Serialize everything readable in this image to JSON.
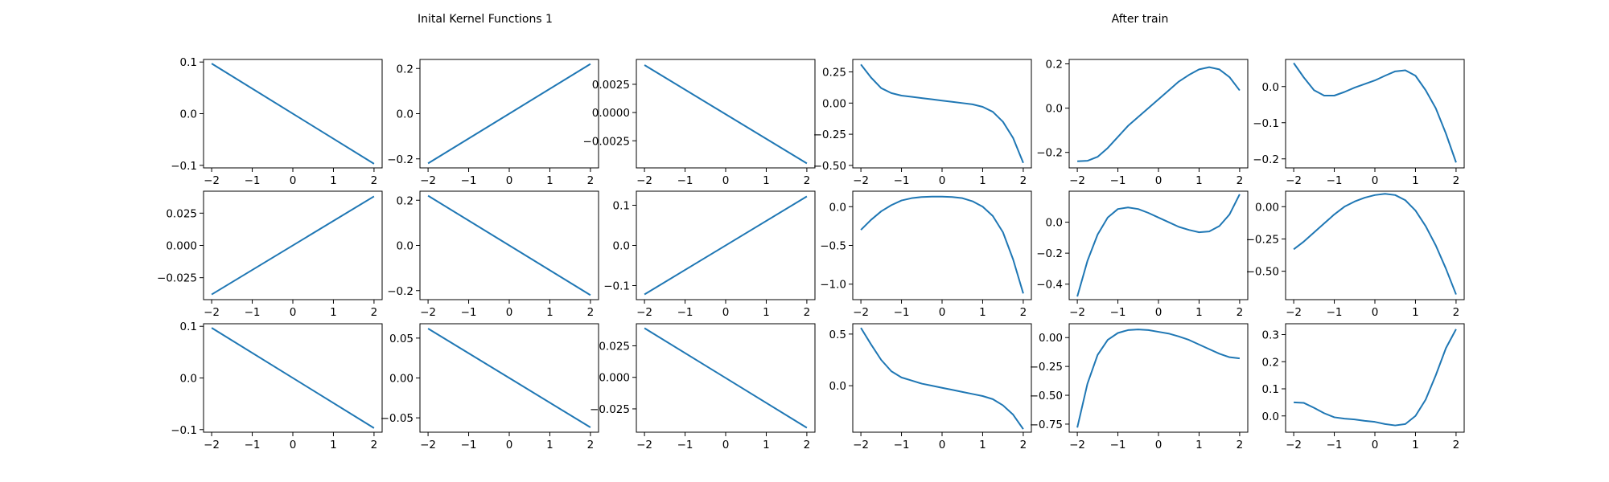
{
  "titles": {
    "left": "Inital Kernel Functions 1",
    "right": "After train"
  },
  "style": {
    "line_color": "#1f77b4",
    "axis_color": "#000000",
    "background": "#ffffff"
  },
  "chart_data": [
    {
      "type": "line",
      "x": [
        -2,
        2
      ],
      "y": [
        0.097,
        -0.097
      ],
      "xlim": [
        -2.2,
        2.2
      ],
      "ylim": [
        -0.105,
        0.105
      ],
      "xticks": [
        -2,
        -1,
        0,
        1,
        2
      ],
      "yticks": [
        0.1,
        0.0,
        -0.1
      ],
      "ytick_labels": [
        "0.1",
        "0.0",
        "−0.1"
      ]
    },
    {
      "type": "line",
      "x": [
        -2,
        2
      ],
      "y": [
        -0.22,
        0.22
      ],
      "xlim": [
        -2.2,
        2.2
      ],
      "ylim": [
        -0.24,
        0.24
      ],
      "xticks": [
        -2,
        -1,
        0,
        1,
        2
      ],
      "yticks": [
        0.2,
        0.0,
        -0.2
      ],
      "ytick_labels": [
        "0.2",
        "0.0",
        "−0.2"
      ]
    },
    {
      "type": "line",
      "x": [
        -2,
        2
      ],
      "y": [
        0.0042,
        -0.0045
      ],
      "xlim": [
        -2.2,
        2.2
      ],
      "ylim": [
        -0.0049,
        0.0047
      ],
      "xticks": [
        -2,
        -1,
        0,
        1,
        2
      ],
      "yticks": [
        0.0025,
        0.0,
        -0.0025
      ],
      "ytick_labels": [
        "0.0025",
        "0.0000",
        "−0.0025"
      ]
    },
    {
      "type": "line",
      "x": [
        -2,
        -1.75,
        -1.5,
        -1.25,
        -1,
        -0.75,
        -0.5,
        -0.25,
        0,
        0.25,
        0.5,
        0.75,
        1,
        1.25,
        1.5,
        1.75,
        2
      ],
      "y": [
        0.31,
        0.205,
        0.12,
        0.08,
        0.06,
        0.05,
        0.04,
        0.03,
        0.02,
        0.01,
        0.0,
        -0.01,
        -0.03,
        -0.07,
        -0.15,
        -0.28,
        -0.48
      ],
      "xlim": [
        -2.2,
        2.2
      ],
      "ylim": [
        -0.52,
        0.35
      ],
      "xticks": [
        -2,
        -1,
        0,
        1,
        2
      ],
      "yticks": [
        0.25,
        0.0,
        -0.25,
        -0.5
      ],
      "ytick_labels": [
        "0.25",
        "0.00",
        "−0.25",
        "−0.50"
      ]
    },
    {
      "type": "line",
      "x": [
        -2,
        -1.75,
        -1.5,
        -1.25,
        -1,
        -0.75,
        -0.5,
        -0.25,
        0,
        0.25,
        0.5,
        0.75,
        1,
        1.25,
        1.5,
        1.75,
        2
      ],
      "y": [
        -0.24,
        -0.238,
        -0.22,
        -0.18,
        -0.13,
        -0.08,
        -0.04,
        0.0,
        0.04,
        0.08,
        0.12,
        0.15,
        0.175,
        0.185,
        0.175,
        0.14,
        0.08
      ],
      "xlim": [
        -2.2,
        2.2
      ],
      "ylim": [
        -0.27,
        0.22
      ],
      "xticks": [
        -2,
        -1,
        0,
        1,
        2
      ],
      "yticks": [
        0.2,
        0.0,
        -0.2
      ],
      "ytick_labels": [
        "0.2",
        "0.0",
        "−0.2"
      ]
    },
    {
      "type": "line",
      "x": [
        -2,
        -1.75,
        -1.5,
        -1.25,
        -1,
        -0.75,
        -0.5,
        -0.25,
        0,
        0.25,
        0.5,
        0.75,
        1,
        1.25,
        1.5,
        1.75,
        2
      ],
      "y": [
        0.065,
        0.025,
        -0.01,
        -0.025,
        -0.025,
        -0.015,
        -0.003,
        0.007,
        0.017,
        0.03,
        0.042,
        0.045,
        0.03,
        -0.01,
        -0.06,
        -0.13,
        -0.21
      ],
      "xlim": [
        -2.2,
        2.2
      ],
      "ylim": [
        -0.225,
        0.075
      ],
      "xticks": [
        -2,
        -1,
        0,
        1,
        2
      ],
      "yticks": [
        0.0,
        -0.1,
        -0.2
      ],
      "ytick_labels": [
        "0.0",
        "−0.1",
        "−0.2"
      ]
    },
    {
      "type": "line",
      "x": [
        -2,
        2
      ],
      "y": [
        -0.038,
        0.038
      ],
      "xlim": [
        -2.2,
        2.2
      ],
      "ylim": [
        -0.042,
        0.042
      ],
      "xticks": [
        -2,
        -1,
        0,
        1,
        2
      ],
      "yticks": [
        0.025,
        0.0,
        -0.025
      ],
      "ytick_labels": [
        "0.025",
        "0.000",
        "−0.025"
      ]
    },
    {
      "type": "line",
      "x": [
        -2,
        2
      ],
      "y": [
        0.22,
        -0.22
      ],
      "xlim": [
        -2.2,
        2.2
      ],
      "ylim": [
        -0.24,
        0.24
      ],
      "xticks": [
        -2,
        -1,
        0,
        1,
        2
      ],
      "yticks": [
        0.2,
        0.0,
        -0.2
      ],
      "ytick_labels": [
        "0.2",
        "0.0",
        "−0.2"
      ]
    },
    {
      "type": "line",
      "x": [
        -2,
        2
      ],
      "y": [
        -0.122,
        0.122
      ],
      "xlim": [
        -2.2,
        2.2
      ],
      "ylim": [
        -0.135,
        0.135
      ],
      "xticks": [
        -2,
        -1,
        0,
        1,
        2
      ],
      "yticks": [
        0.1,
        0.0,
        -0.1
      ],
      "ytick_labels": [
        "0.1",
        "0.0",
        "−0.1"
      ]
    },
    {
      "type": "line",
      "x": [
        -2,
        -1.75,
        -1.5,
        -1.25,
        -1,
        -0.75,
        -0.5,
        -0.25,
        0,
        0.25,
        0.5,
        0.75,
        1,
        1.25,
        1.5,
        1.75,
        2
      ],
      "y": [
        -0.3,
        -0.17,
        -0.06,
        0.02,
        0.08,
        0.11,
        0.125,
        0.13,
        0.13,
        0.125,
        0.11,
        0.07,
        0.0,
        -0.12,
        -0.33,
        -0.68,
        -1.12
      ],
      "xlim": [
        -2.2,
        2.2
      ],
      "ylim": [
        -1.2,
        0.2
      ],
      "xticks": [
        -2,
        -1,
        0,
        1,
        2
      ],
      "yticks": [
        0.0,
        -0.5,
        -1.0
      ],
      "ytick_labels": [
        "0.0",
        "−0.5",
        "−1.0"
      ]
    },
    {
      "type": "line",
      "x": [
        -2,
        -1.75,
        -1.5,
        -1.25,
        -1,
        -0.75,
        -0.5,
        -0.25,
        0,
        0.25,
        0.5,
        0.75,
        1,
        1.25,
        1.5,
        1.75,
        2
      ],
      "y": [
        -0.48,
        -0.25,
        -0.08,
        0.03,
        0.085,
        0.095,
        0.085,
        0.06,
        0.03,
        0.0,
        -0.03,
        -0.05,
        -0.065,
        -0.06,
        -0.025,
        0.05,
        0.18
      ],
      "xlim": [
        -2.2,
        2.2
      ],
      "ylim": [
        -0.5,
        0.2
      ],
      "xticks": [
        -2,
        -1,
        0,
        1,
        2
      ],
      "yticks": [
        0.0,
        -0.2,
        -0.4
      ],
      "ytick_labels": [
        "0.0",
        "−0.2",
        "−0.4"
      ]
    },
    {
      "type": "line",
      "x": [
        -2,
        -1.75,
        -1.5,
        -1.25,
        -1,
        -0.75,
        -0.5,
        -0.25,
        0,
        0.25,
        0.5,
        0.75,
        1,
        1.25,
        1.5,
        1.75,
        2
      ],
      "y": [
        -0.33,
        -0.27,
        -0.2,
        -0.13,
        -0.06,
        0.0,
        0.04,
        0.07,
        0.09,
        0.1,
        0.09,
        0.05,
        -0.03,
        -0.15,
        -0.3,
        -0.48,
        -0.68
      ],
      "xlim": [
        -2.2,
        2.2
      ],
      "ylim": [
        -0.72,
        0.12
      ],
      "xticks": [
        -2,
        -1,
        0,
        1,
        2
      ],
      "yticks": [
        0.0,
        -0.25,
        -0.5
      ],
      "ytick_labels": [
        "0.00",
        "−0.25",
        "−0.50"
      ]
    },
    {
      "type": "line",
      "x": [
        -2,
        2
      ],
      "y": [
        0.097,
        -0.097
      ],
      "xlim": [
        -2.2,
        2.2
      ],
      "ylim": [
        -0.105,
        0.105
      ],
      "xticks": [
        -2,
        -1,
        0,
        1,
        2
      ],
      "yticks": [
        0.1,
        0.0,
        -0.1
      ],
      "ytick_labels": [
        "0.1",
        "0.0",
        "−0.1"
      ]
    },
    {
      "type": "line",
      "x": [
        -2,
        2
      ],
      "y": [
        0.062,
        -0.062
      ],
      "xlim": [
        -2.2,
        2.2
      ],
      "ylim": [
        -0.068,
        0.068
      ],
      "xticks": [
        -2,
        -1,
        0,
        1,
        2
      ],
      "yticks": [
        0.05,
        0.0,
        -0.05
      ],
      "ytick_labels": [
        "0.05",
        "0.00",
        "−0.05"
      ]
    },
    {
      "type": "line",
      "x": [
        -2,
        2
      ],
      "y": [
        0.039,
        -0.04
      ],
      "xlim": [
        -2.2,
        2.2
      ],
      "ylim": [
        -0.0435,
        0.0425
      ],
      "xticks": [
        -2,
        -1,
        0,
        1,
        2
      ],
      "yticks": [
        0.025,
        0.0,
        -0.025
      ],
      "ytick_labels": [
        "0.025",
        "0.000",
        "−0.025"
      ]
    },
    {
      "type": "line",
      "x": [
        -2,
        -1.75,
        -1.5,
        -1.25,
        -1,
        -0.75,
        -0.5,
        -0.25,
        0,
        0.25,
        0.5,
        0.75,
        1,
        1.25,
        1.5,
        1.75,
        2
      ],
      "y": [
        0.56,
        0.4,
        0.25,
        0.14,
        0.08,
        0.05,
        0.02,
        0.0,
        -0.02,
        -0.04,
        -0.06,
        -0.08,
        -0.1,
        -0.13,
        -0.19,
        -0.28,
        -0.42
      ],
      "xlim": [
        -2.2,
        2.2
      ],
      "ylim": [
        -0.45,
        0.6
      ],
      "xticks": [
        -2,
        -1,
        0,
        1,
        2
      ],
      "yticks": [
        0.5,
        0.0
      ],
      "ytick_labels": [
        "0.5",
        "0.0"
      ]
    },
    {
      "type": "line",
      "x": [
        -2,
        -1.75,
        -1.5,
        -1.25,
        -1,
        -0.75,
        -0.5,
        -0.25,
        0,
        0.25,
        0.5,
        0.75,
        1,
        1.25,
        1.5,
        1.75,
        2
      ],
      "y": [
        -0.78,
        -0.4,
        -0.15,
        -0.02,
        0.04,
        0.065,
        0.07,
        0.065,
        0.05,
        0.035,
        0.01,
        -0.02,
        -0.06,
        -0.1,
        -0.14,
        -0.17,
        -0.18
      ],
      "xlim": [
        -2.2,
        2.2
      ],
      "ylim": [
        -0.82,
        0.12
      ],
      "xticks": [
        -2,
        -1,
        0,
        1,
        2
      ],
      "yticks": [
        0.0,
        -0.25,
        -0.5,
        -0.75
      ],
      "ytick_labels": [
        "0.00",
        "−0.25",
        "−0.50",
        "−0.75"
      ]
    },
    {
      "type": "line",
      "x": [
        -2,
        -1.75,
        -1.5,
        -1.25,
        -1,
        -0.75,
        -0.5,
        -0.25,
        0,
        0.25,
        0.5,
        0.75,
        1,
        1.25,
        1.5,
        1.75,
        2
      ],
      "y": [
        0.05,
        0.048,
        0.03,
        0.01,
        -0.005,
        -0.01,
        -0.013,
        -0.018,
        -0.022,
        -0.03,
        -0.035,
        -0.03,
        0.0,
        0.06,
        0.15,
        0.25,
        0.32
      ],
      "xlim": [
        -2.2,
        2.2
      ],
      "ylim": [
        -0.06,
        0.34
      ],
      "xticks": [
        -2,
        -1,
        0,
        1,
        2
      ],
      "yticks": [
        0.3,
        0.2,
        0.1,
        0.0
      ],
      "ytick_labels": [
        "0.3",
        "0.2",
        "0.1",
        "0.0"
      ]
    }
  ]
}
